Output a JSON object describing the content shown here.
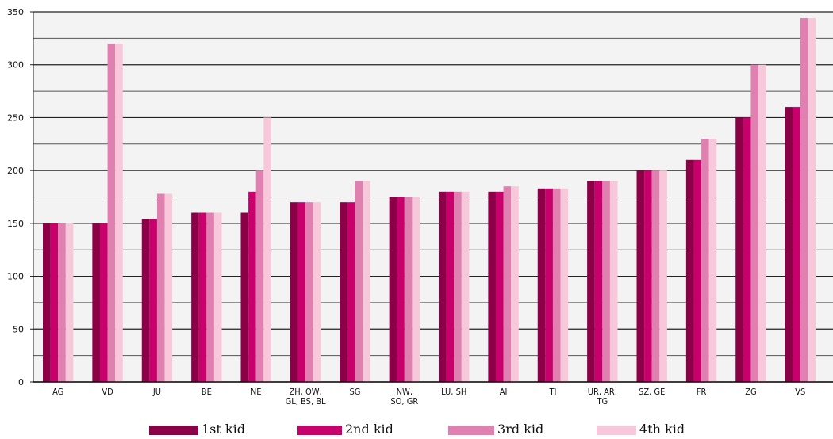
{
  "chart_data": {
    "type": "bar",
    "categories": [
      [
        "AG"
      ],
      [
        "VD"
      ],
      [
        "JU"
      ],
      [
        "BE"
      ],
      [
        "NE"
      ],
      [
        "ZH, OW,",
        "GL, BS, BL"
      ],
      [
        "SG"
      ],
      [
        "NW,",
        "SO, GR"
      ],
      [
        "LU, SH"
      ],
      [
        "AI"
      ],
      [
        "TI"
      ],
      [
        "UR, AR,",
        "TG"
      ],
      [
        "SZ, GE"
      ],
      [
        "FR"
      ],
      [
        "ZG"
      ],
      [
        "VS"
      ]
    ],
    "series": [
      {
        "name": "1st kid",
        "color": "#8b0046",
        "values": [
          150,
          150,
          154,
          160,
          160,
          170,
          170,
          175,
          180,
          180,
          183,
          190,
          200,
          210,
          250,
          260
        ]
      },
      {
        "name": "2nd kid",
        "color": "#c8006c",
        "values": [
          150,
          150,
          154,
          160,
          180,
          170,
          170,
          175,
          180,
          180,
          183,
          190,
          200,
          210,
          250,
          260
        ]
      },
      {
        "name": "3rd kid",
        "color": "#e080b0",
        "values": [
          150,
          320,
          178,
          160,
          200,
          170,
          190,
          175,
          180,
          185,
          183,
          190,
          200,
          230,
          300,
          344
        ]
      },
      {
        "name": "4th kid",
        "color": "#f7c8da",
        "values": [
          150,
          320,
          178,
          160,
          250,
          170,
          190,
          175,
          180,
          185,
          183,
          190,
          200,
          230,
          300,
          344
        ]
      }
    ],
    "yticks": [
      0,
      50,
      100,
      150,
      200,
      250,
      300,
      350
    ],
    "ylim": [
      0,
      350
    ],
    "grid": true,
    "legend_position": "bottom"
  }
}
